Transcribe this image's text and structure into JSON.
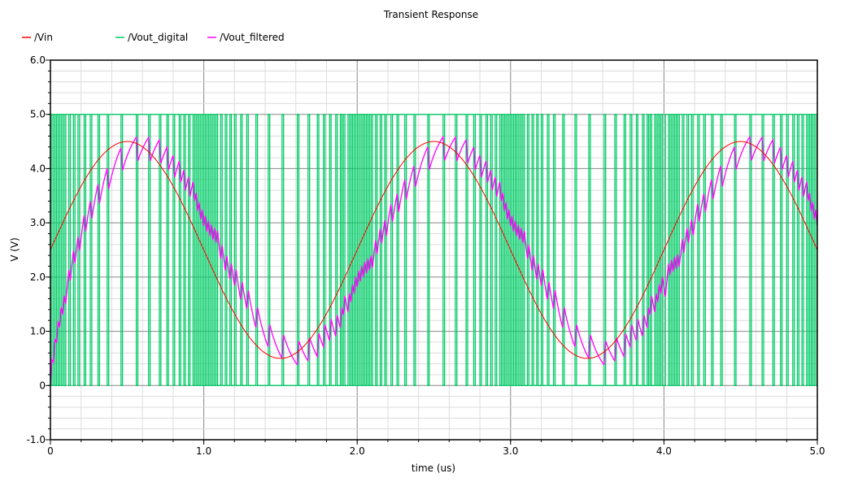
{
  "chart_data": {
    "type": "line",
    "title": "Transient Response",
    "xlabel": "time (us)",
    "ylabel": "V (V)",
    "xlim": [
      0,
      5.0
    ],
    "ylim": [
      -1.0,
      6.0
    ],
    "xticks": [
      "0",
      "1.0",
      "2.0",
      "3.0",
      "4.0",
      "5.0"
    ],
    "yticks": [
      "-1.0",
      "0",
      "1.0",
      "2.0",
      "3.0",
      "4.0",
      "5.0",
      "6.0"
    ],
    "xtick_values": [
      0,
      1,
      2,
      3,
      4,
      5
    ],
    "ytick_values": [
      -1,
      0,
      1,
      2,
      3,
      4,
      5,
      6
    ],
    "grid": true,
    "legend_position": "top-left",
    "series": [
      {
        "name": "/Vin",
        "color": "#ff0000",
        "kind": "sine",
        "offset_V": 2.5,
        "amplitude_V": 2.0,
        "frequency_MHz": 0.5,
        "phase_deg": 0
      },
      {
        "name": "/Vout_digital",
        "color": "#00cc66",
        "kind": "sigma-delta",
        "low_V": 0,
        "high_V": 5.0,
        "clock_period_us": 0.01
      },
      {
        "name": "/Vout_filtered",
        "color": "#ff00ff",
        "kind": "rc-filtered",
        "tau_us": 0.1
      }
    ]
  }
}
